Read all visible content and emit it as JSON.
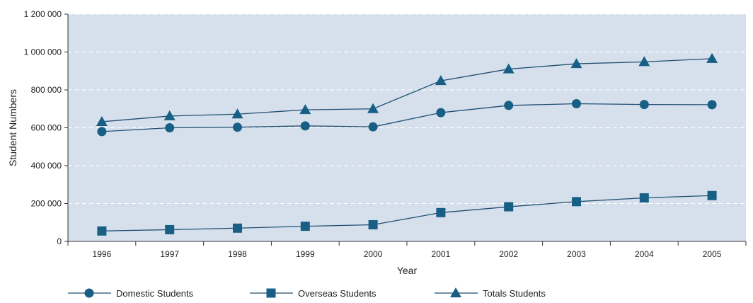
{
  "chart_data": {
    "type": "line",
    "xlabel": "Year",
    "ylabel": "Student Numbers",
    "categories": [
      "1996",
      "1997",
      "1998",
      "1999",
      "2000",
      "2001",
      "2002",
      "2003",
      "2004",
      "2005"
    ],
    "y_ticks": [
      "0",
      "200 000",
      "400 000",
      "600 000",
      "800 000",
      "1 000 000",
      "1 200 000"
    ],
    "ylim": [
      0,
      1200000
    ],
    "grid": true,
    "legend_position": "bottom",
    "series": [
      {
        "name": "Domestic Students",
        "marker": "circle",
        "values": [
          580000,
          600000,
          603000,
          610000,
          605000,
          680000,
          718000,
          727000,
          723000,
          722000
        ]
      },
      {
        "name": "Overseas Students",
        "marker": "square",
        "values": [
          55000,
          62000,
          70000,
          80000,
          88000,
          152000,
          183000,
          210000,
          230000,
          242000
        ]
      },
      {
        "name": "Totals Students",
        "marker": "triangle",
        "values": [
          632000,
          662000,
          672000,
          695000,
          700000,
          848000,
          910000,
          938000,
          948000,
          965000
        ]
      }
    ],
    "colors": {
      "plot_background": "#d6e0ec",
      "line": "#1f4f72",
      "marker": "#175f84",
      "grid": "#ffffff"
    }
  }
}
